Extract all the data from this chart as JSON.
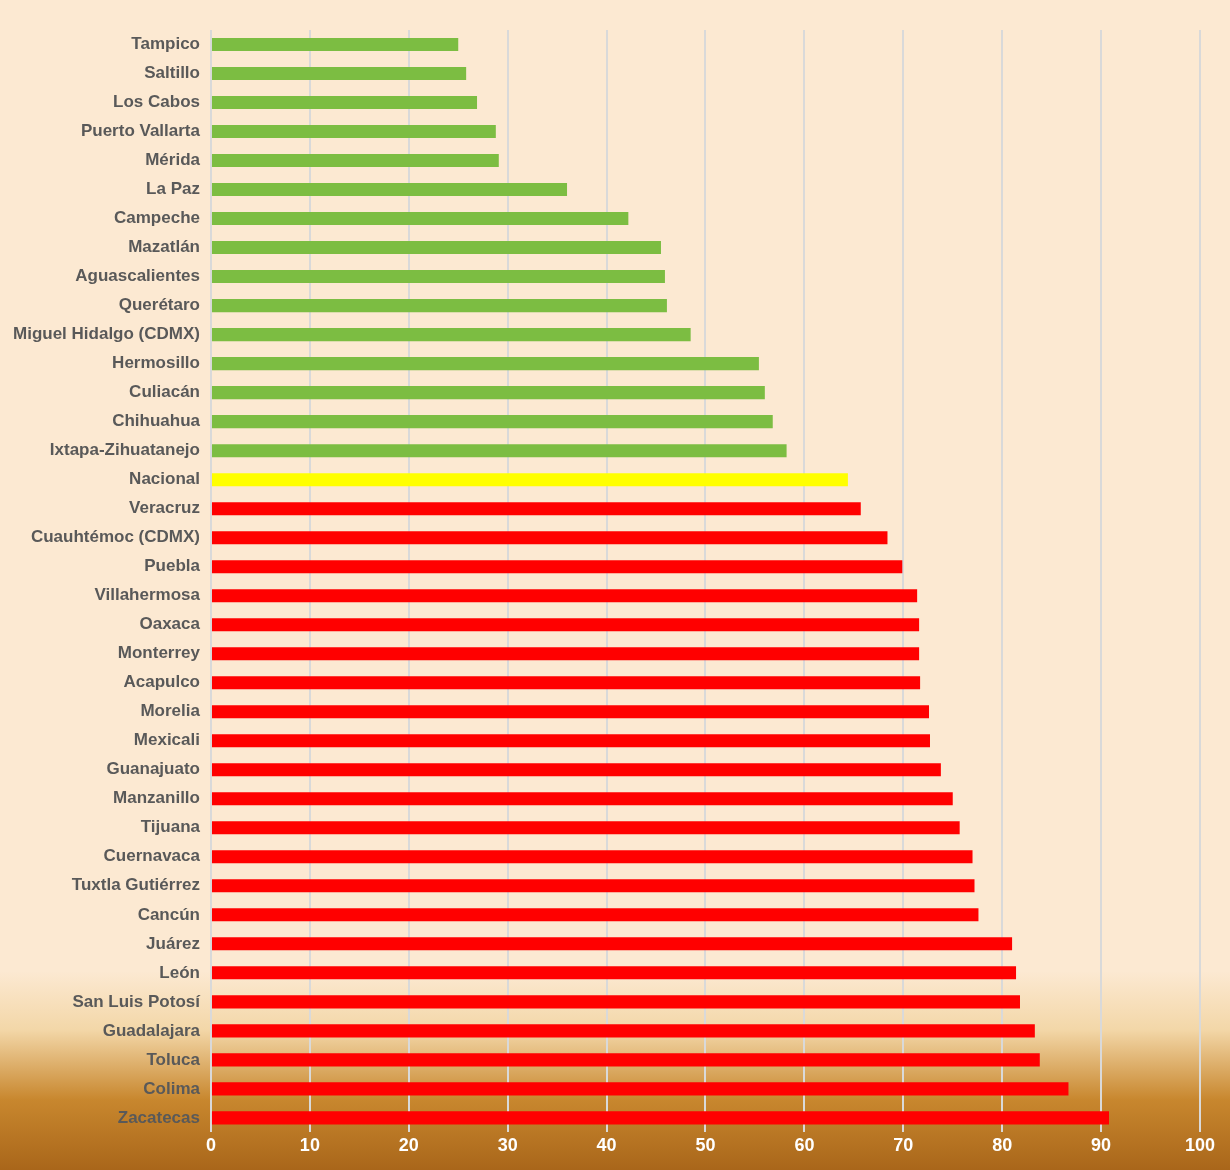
{
  "chart_data": {
    "type": "bar",
    "orientation": "horizontal",
    "categories": [
      "Tampico",
      "Saltillo",
      "Los Cabos",
      "Puerto Vallarta",
      "Mérida",
      "La Paz",
      "Campeche",
      "Mazatlán",
      "Aguascalientes",
      "Querétaro",
      "Miguel Hidalgo (CDMX)",
      "Hermosillo",
      "Culiacán",
      "Chihuahua",
      "Ixtapa-Zihuatanejo",
      "Nacional",
      "Veracruz",
      "Cuauhtémoc (CDMX)",
      "Puebla",
      "Villahermosa",
      "Oaxaca",
      "Monterrey",
      "Acapulco",
      "Morelia",
      "Mexicali",
      "Guanajuato",
      "Manzanillo",
      "Tijuana",
      "Cuernavaca",
      "Tuxtla Gutiérrez",
      "Cancún",
      "Juárez",
      "León",
      "San Luis Potosí",
      "Guadalajara",
      "Toluca",
      "Colima",
      "Zacatecas"
    ],
    "values": [
      25.0,
      25.8,
      26.9,
      28.8,
      29.1,
      36.0,
      42.2,
      45.5,
      45.9,
      46.1,
      48.5,
      55.4,
      56.0,
      56.8,
      58.2,
      64.4,
      65.7,
      68.4,
      69.9,
      71.4,
      71.6,
      71.6,
      71.7,
      72.6,
      72.7,
      73.8,
      75.0,
      75.7,
      77.0,
      77.2,
      77.6,
      81.0,
      81.4,
      81.8,
      83.3,
      83.8,
      86.7,
      90.8
    ],
    "colors": [
      "#7cbd42",
      "#7cbd42",
      "#7cbd42",
      "#7cbd42",
      "#7cbd42",
      "#7cbd42",
      "#7cbd42",
      "#7cbd42",
      "#7cbd42",
      "#7cbd42",
      "#7cbd42",
      "#7cbd42",
      "#7cbd42",
      "#7cbd42",
      "#7cbd42",
      "#ffff00",
      "#ff0000",
      "#ff0000",
      "#ff0000",
      "#ff0000",
      "#ff0000",
      "#ff0000",
      "#ff0000",
      "#ff0000",
      "#ff0000",
      "#ff0000",
      "#ff0000",
      "#ff0000",
      "#ff0000",
      "#ff0000",
      "#ff0000",
      "#ff0000",
      "#ff0000",
      "#ff0000",
      "#ff0000",
      "#ff0000",
      "#ff0000",
      "#ff0000"
    ],
    "xlim": [
      0,
      100
    ],
    "xticks": [
      0,
      10,
      20,
      30,
      40,
      50,
      60,
      70,
      80,
      90,
      100
    ],
    "grid": "x",
    "legend": false
  }
}
